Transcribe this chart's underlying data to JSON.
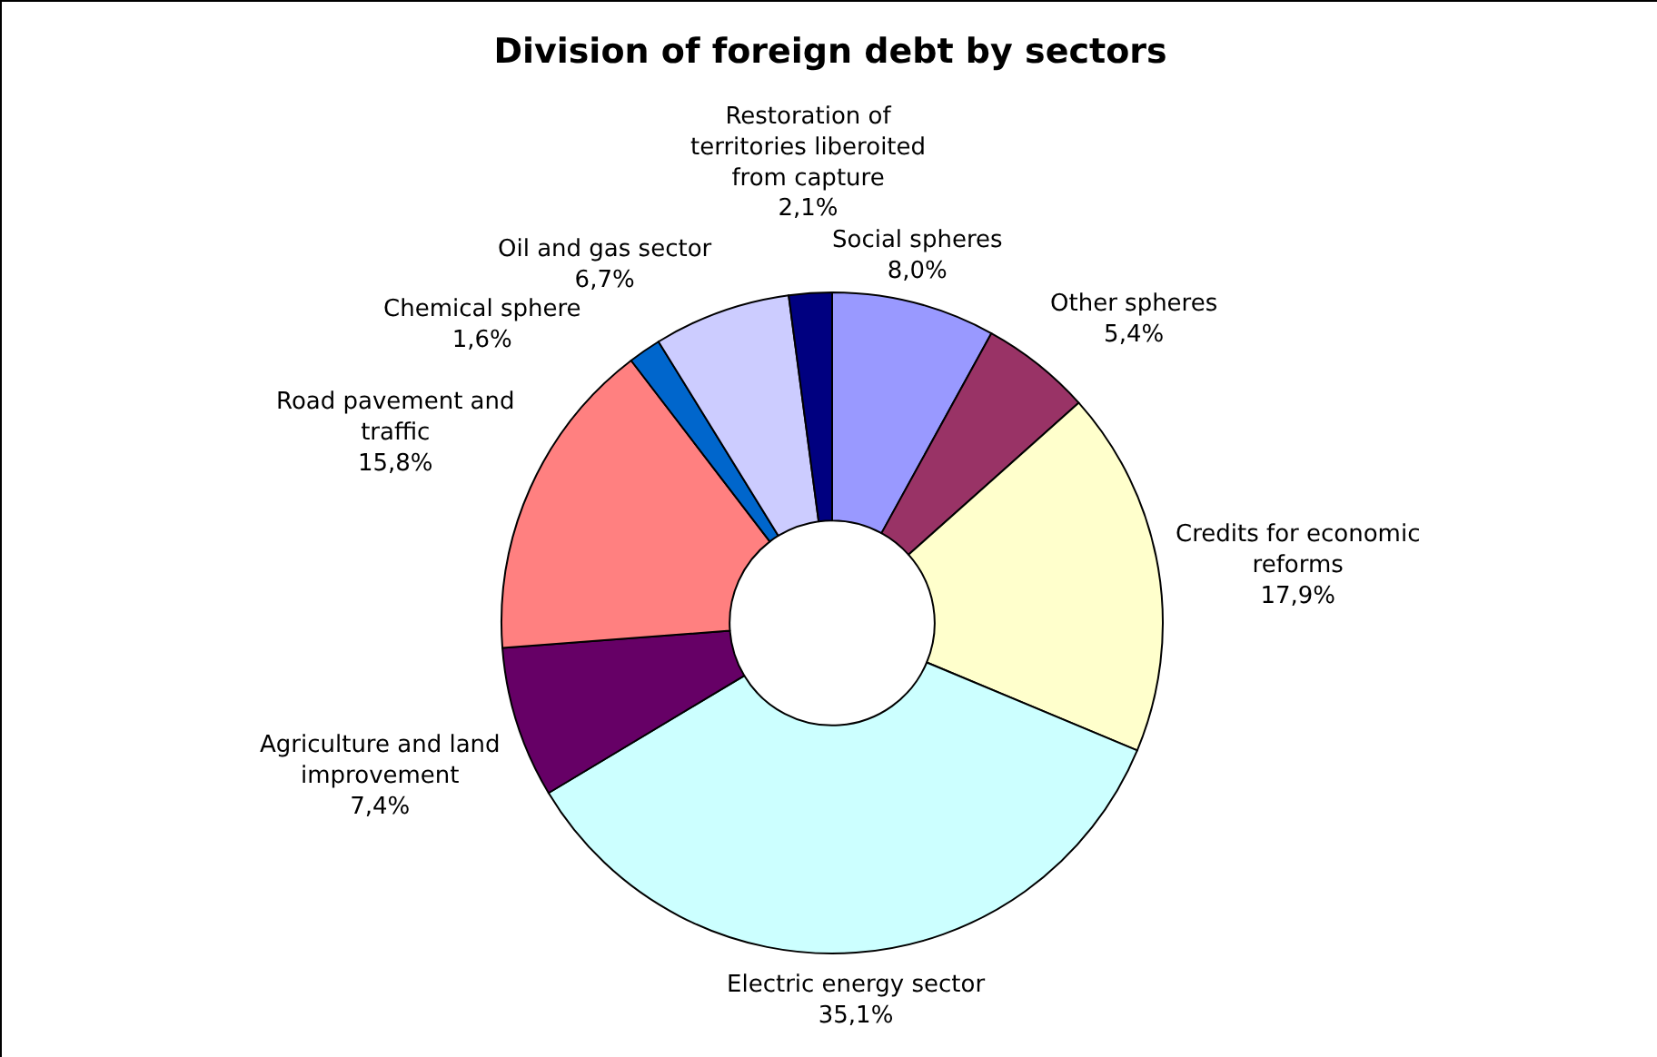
{
  "chart_data": {
    "type": "donut",
    "title": "Division of foreign debt by sectors",
    "categories": [
      "Social spheres",
      "Other spheres",
      "Credits for economic reforms",
      "Electric energy sector",
      "Agriculture and land improvement",
      "Road pavement and traffic",
      "Chemical sphere",
      "Oil and gas sector",
      "Restoration of territories liberoited from capture"
    ],
    "values": [
      8.0,
      5.4,
      17.9,
      35.1,
      7.4,
      15.8,
      1.6,
      6.7,
      2.1
    ],
    "value_labels": [
      "8,0%",
      "5,4%",
      "17,9%",
      "35,1%",
      "7,4%",
      "15,8%",
      "1,6%",
      "6,7%",
      "2,1%"
    ],
    "colors": [
      "#9999ff",
      "#993366",
      "#ffffcc",
      "#ccffff",
      "#660066",
      "#ff8080",
      "#0066cc",
      "#ccccff",
      "#000080"
    ],
    "legend": false
  }
}
